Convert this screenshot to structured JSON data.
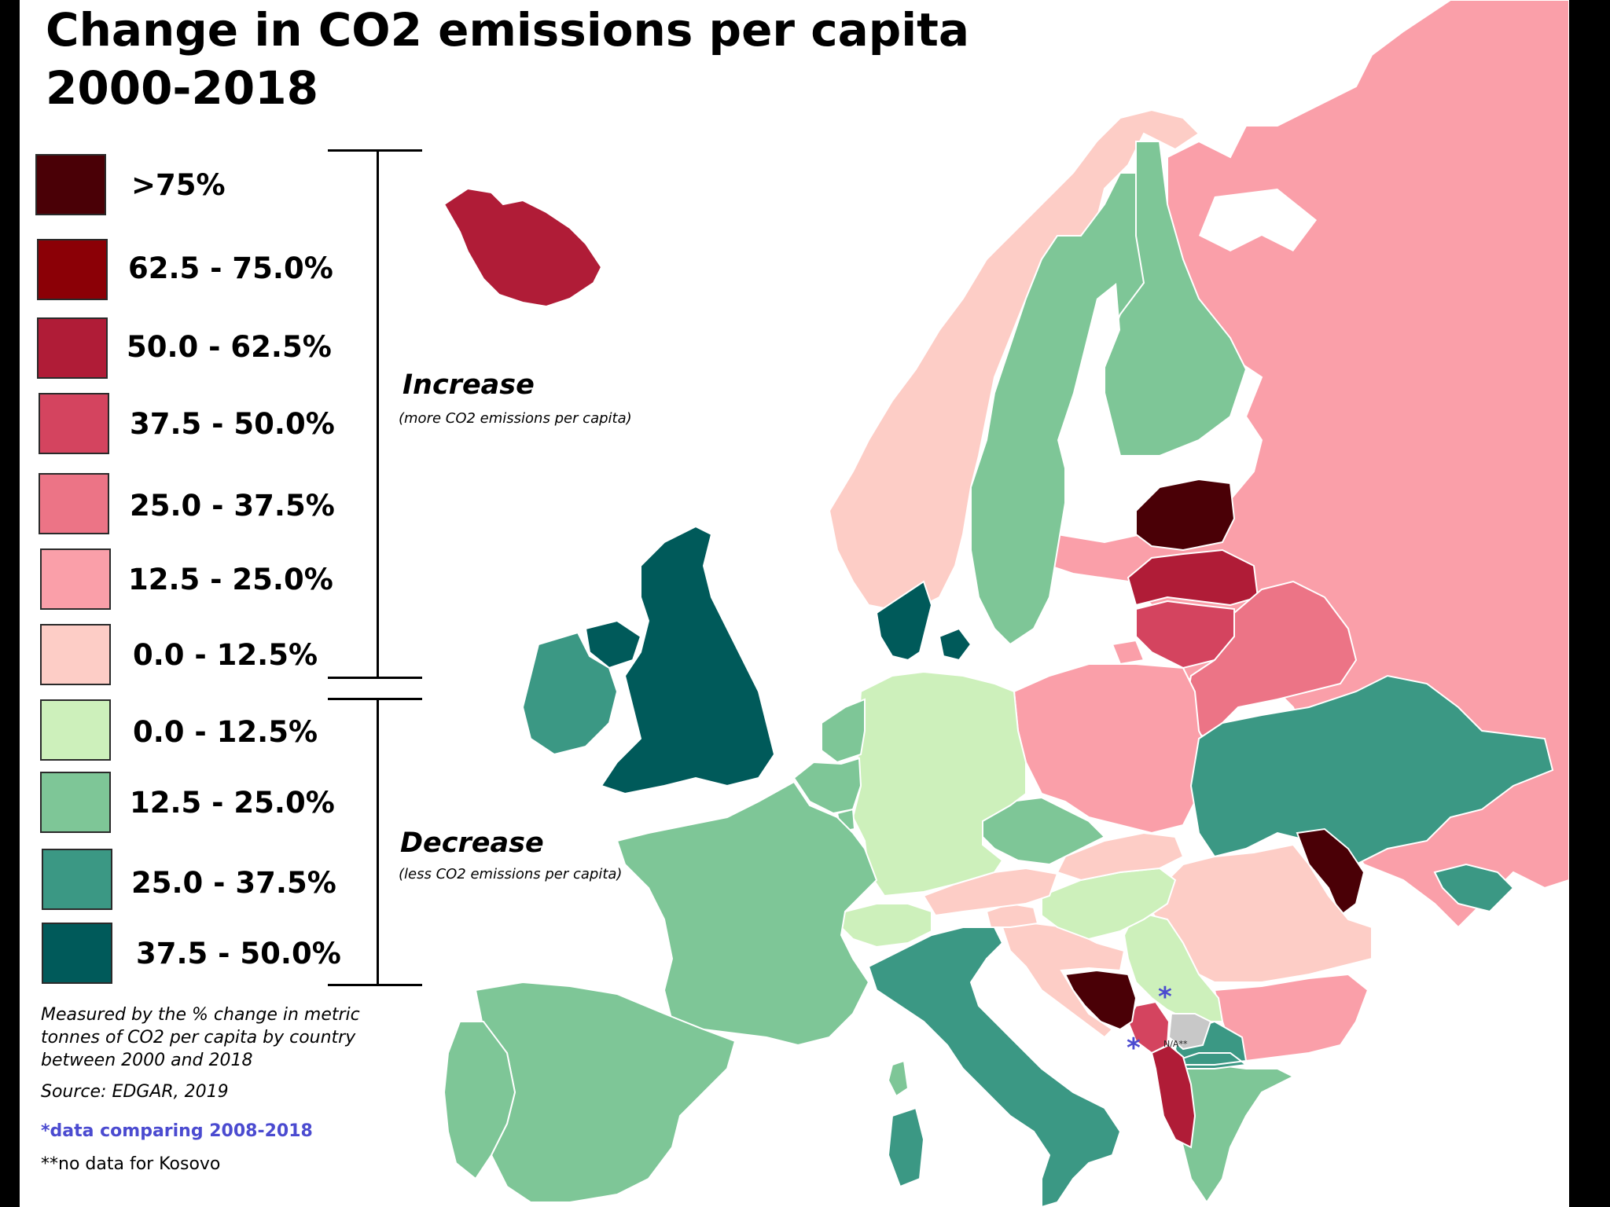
{
  "title_line1": "Change in CO2 emissions per capita",
  "title_line2": "2000-2018",
  "legend": {
    "increase": {
      "title": "Increase",
      "subtitle": "(more CO2 emissions per capita)",
      "classes": [
        {
          "label": ">75%",
          "color": "#4a0006"
        },
        {
          "label": "62.5 - 75.0%",
          "color": "#8b0006"
        },
        {
          "label": "50.0 - 62.5%",
          "color": "#b01c37"
        },
        {
          "label": "37.5 - 50.0%",
          "color": "#d4445f"
        },
        {
          "label": "25.0 - 37.5%",
          "color": "#ec7486"
        },
        {
          "label": "12.5 - 25.0%",
          "color": "#fa9fa9"
        },
        {
          "label": "0.0 - 12.5%",
          "color": "#fdcdc6"
        }
      ]
    },
    "decrease": {
      "title": "Decrease",
      "subtitle": "(less CO2 emissions per capita)",
      "classes": [
        {
          "label": "0.0 - 12.5%",
          "color": "#cdf0bb"
        },
        {
          "label": "12.5 - 25.0%",
          "color": "#7ec697"
        },
        {
          "label": "25.0 - 37.5%",
          "color": "#3b9884"
        },
        {
          "label": "37.5 - 50.0%",
          "color": "#005a5a"
        }
      ]
    }
  },
  "notes": {
    "measure": "Measured by the % change in metric tonnes of CO2 per capita by country between 2000 and 2018",
    "source": "Source: EDGAR, 2019",
    "star_note": "*data comparing 2008-2018",
    "star_color": "#4b4bd0",
    "kosovo_note": "**no data for Kosovo"
  },
  "map": {
    "star_marker": "*",
    "na_label": "N/A**",
    "na_color": "#c8c8c8",
    "countries": [
      {
        "name": "Iceland",
        "class": "50.0 - 62.5%",
        "direction": "increase"
      },
      {
        "name": "Norway",
        "class": "0.0 - 12.5%",
        "direction": "increase"
      },
      {
        "name": "Sweden",
        "class": "12.5 - 25.0%",
        "direction": "decrease"
      },
      {
        "name": "Finland",
        "class": "12.5 - 25.0%",
        "direction": "decrease"
      },
      {
        "name": "Russia",
        "class": "12.5 - 25.0%",
        "direction": "increase"
      },
      {
        "name": "Estonia",
        "class": ">75%",
        "direction": "increase"
      },
      {
        "name": "Latvia",
        "class": "50.0 - 62.5%",
        "direction": "increase"
      },
      {
        "name": "Lithuania",
        "class": "37.5 - 50.0%",
        "direction": "increase"
      },
      {
        "name": "Belarus",
        "class": "25.0 - 37.5%",
        "direction": "increase"
      },
      {
        "name": "Poland",
        "class": "12.5 - 25.0%",
        "direction": "increase"
      },
      {
        "name": "Ukraine",
        "class": "25.0 - 37.5%",
        "direction": "decrease"
      },
      {
        "name": "Moldova",
        "class": ">75%",
        "direction": "increase"
      },
      {
        "name": "Romania",
        "class": "0.0 - 12.5%",
        "direction": "increase"
      },
      {
        "name": "Bulgaria",
        "class": "12.5 - 25.0%",
        "direction": "increase"
      },
      {
        "name": "Serbia",
        "class": "0.0 - 12.5%",
        "direction": "decrease",
        "starred": true
      },
      {
        "name": "Montenegro",
        "class": "37.5 - 50.0%",
        "direction": "increase",
        "starred": true
      },
      {
        "name": "Kosovo",
        "class": "N/A**",
        "direction": "none"
      },
      {
        "name": "Bosnia and Herzegovina",
        "class": ">75%",
        "direction": "increase"
      },
      {
        "name": "Albania",
        "class": "50.0 - 62.5%",
        "direction": "increase"
      },
      {
        "name": "North Macedonia",
        "class": "25.0 - 37.5%",
        "direction": "decrease"
      },
      {
        "name": "Greece",
        "class": "12.5 - 25.0%",
        "direction": "decrease"
      },
      {
        "name": "Croatia",
        "class": "0.0 - 12.5%",
        "direction": "increase"
      },
      {
        "name": "Slovenia",
        "class": "0.0 - 12.5%",
        "direction": "increase"
      },
      {
        "name": "Hungary",
        "class": "0.0 - 12.5%",
        "direction": "decrease"
      },
      {
        "name": "Slovakia",
        "class": "0.0 - 12.5%",
        "direction": "increase"
      },
      {
        "name": "Czechia",
        "class": "12.5 - 25.0%",
        "direction": "decrease"
      },
      {
        "name": "Austria",
        "class": "0.0 - 12.5%",
        "direction": "increase"
      },
      {
        "name": "Germany",
        "class": "0.0 - 12.5%",
        "direction": "decrease"
      },
      {
        "name": "Switzerland",
        "class": "0.0 - 12.5%",
        "direction": "decrease"
      },
      {
        "name": "Italy",
        "class": "25.0 - 37.5%",
        "direction": "decrease"
      },
      {
        "name": "France",
        "class": "12.5 - 25.0%",
        "direction": "decrease"
      },
      {
        "name": "Spain",
        "class": "12.5 - 25.0%",
        "direction": "decrease"
      },
      {
        "name": "Portugal",
        "class": "12.5 - 25.0%",
        "direction": "decrease"
      },
      {
        "name": "Belgium",
        "class": "12.5 - 25.0%",
        "direction": "decrease"
      },
      {
        "name": "Netherlands",
        "class": "12.5 - 25.0%",
        "direction": "decrease"
      },
      {
        "name": "Luxembourg",
        "class": "12.5 - 25.0%",
        "direction": "decrease"
      },
      {
        "name": "Denmark",
        "class": "37.5 - 50.0%",
        "direction": "decrease"
      },
      {
        "name": "United Kingdom",
        "class": "37.5 - 50.0%",
        "direction": "decrease"
      },
      {
        "name": "Ireland",
        "class": "25.0 - 37.5%",
        "direction": "decrease"
      },
      {
        "name": "Northern Ireland",
        "class": "37.5 - 50.0%",
        "direction": "decrease"
      }
    ]
  }
}
